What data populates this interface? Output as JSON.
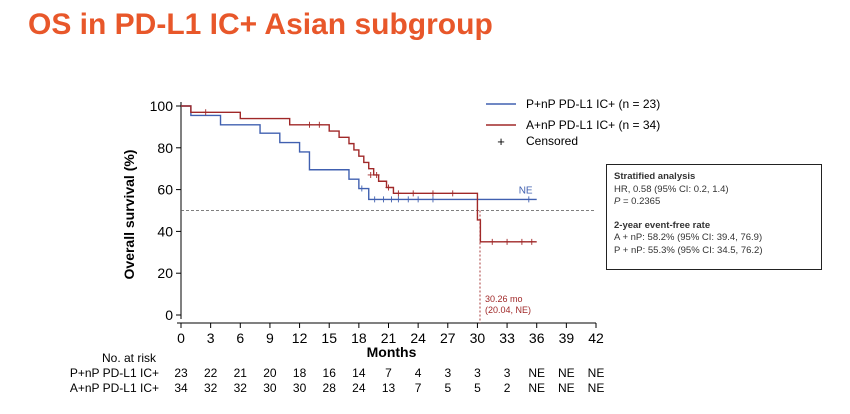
{
  "page": {
    "title": "OS in PD-L1 IC+ Asian subgroup"
  },
  "chart_data": {
    "type": "line",
    "subtype": "kaplan-meier",
    "title": "OS in PD-L1 IC+ Asian subgroup",
    "xlabel": "Months",
    "ylabel": "Overall survival (%)",
    "xlim": [
      0,
      42
    ],
    "ylim": [
      0,
      100
    ],
    "xticks": [
      0,
      3,
      6,
      9,
      12,
      15,
      18,
      21,
      24,
      27,
      30,
      33,
      36,
      39,
      42
    ],
    "yticks": [
      0,
      20,
      40,
      60,
      80,
      100
    ],
    "reference_line_y": 50,
    "median_marker": {
      "x": 30.26,
      "label1": "30.26 mo",
      "label2": "(20.04, NE)"
    },
    "legend": {
      "position": "top-right",
      "entries": [
        "P+nP PD-L1 IC+ (n = 23)",
        "A+nP PD-L1 IC+ (n = 34)",
        "Censored"
      ],
      "censored_symbol": "+"
    },
    "series": [
      {
        "name": "P+nP PD-L1 IC+ (n = 23)",
        "color": "#4060b0",
        "end_label": "NE",
        "steps": [
          [
            0,
            100
          ],
          [
            1,
            95.5
          ],
          [
            4,
            91
          ],
          [
            8,
            87
          ],
          [
            10,
            82.5
          ],
          [
            12,
            78
          ],
          [
            13,
            69.5
          ],
          [
            17,
            65
          ],
          [
            18,
            60.5
          ],
          [
            19,
            55.3
          ],
          [
            36,
            55.3
          ]
        ],
        "censored": [
          [
            18.3,
            60.5
          ],
          [
            19.6,
            55.3
          ],
          [
            20.5,
            55.3
          ],
          [
            21.3,
            55.3
          ],
          [
            22,
            55.3
          ],
          [
            23,
            55.3
          ],
          [
            24,
            55.3
          ],
          [
            25.5,
            55.3
          ],
          [
            35.2,
            55.3
          ]
        ]
      },
      {
        "name": "A+nP PD-L1 IC+ (n = 34)",
        "color": "#a02828",
        "steps": [
          [
            0,
            100
          ],
          [
            1,
            97
          ],
          [
            6,
            94
          ],
          [
            11,
            91
          ],
          [
            15,
            88
          ],
          [
            16,
            85
          ],
          [
            17,
            82
          ],
          [
            17.5,
            79
          ],
          [
            18,
            76
          ],
          [
            18.5,
            73
          ],
          [
            19,
            70
          ],
          [
            19.5,
            67
          ],
          [
            20,
            64
          ],
          [
            20.8,
            61
          ],
          [
            21.5,
            58.2
          ],
          [
            30,
            45.5
          ],
          [
            30.3,
            35
          ],
          [
            36,
            35
          ]
        ],
        "censored": [
          [
            2.5,
            97
          ],
          [
            13,
            91
          ],
          [
            14,
            91
          ],
          [
            19.2,
            67
          ],
          [
            19.8,
            67
          ],
          [
            21,
            61
          ],
          [
            22,
            58.2
          ],
          [
            23.5,
            58.2
          ],
          [
            25.5,
            58.2
          ],
          [
            27.5,
            58.2
          ],
          [
            31.5,
            35
          ],
          [
            33,
            35
          ],
          [
            34.5,
            35
          ],
          [
            35.5,
            35
          ]
        ]
      }
    ],
    "risk_table": {
      "header": "No. at risk",
      "rows": [
        {
          "label": "P+nP PD-L1 IC+",
          "values": [
            "23",
            "22",
            "21",
            "20",
            "18",
            "16",
            "14",
            "7",
            "4",
            "3",
            "3",
            "3",
            "NE",
            "NE",
            "NE"
          ]
        },
        {
          "label": "A+nP PD-L1 IC+",
          "values": [
            "34",
            "32",
            "32",
            "30",
            "30",
            "28",
            "24",
            "13",
            "7",
            "5",
            "5",
            "2",
            "NE",
            "NE",
            "NE"
          ]
        }
      ]
    }
  },
  "stats_box": {
    "heading1": "Stratified analysis",
    "line1": "HR, 0.58 (95% CI: 0.2, 1.4)",
    "line2_italic": "P",
    "line2_rest": " = 0.2365",
    "heading2": "2-year event-free rate",
    "line3": "A + nP: 58.2% (95% CI: 39.4, 76.9)",
    "line4": "P + nP: 55.3% (95% CI: 34.5, 76.2)"
  }
}
